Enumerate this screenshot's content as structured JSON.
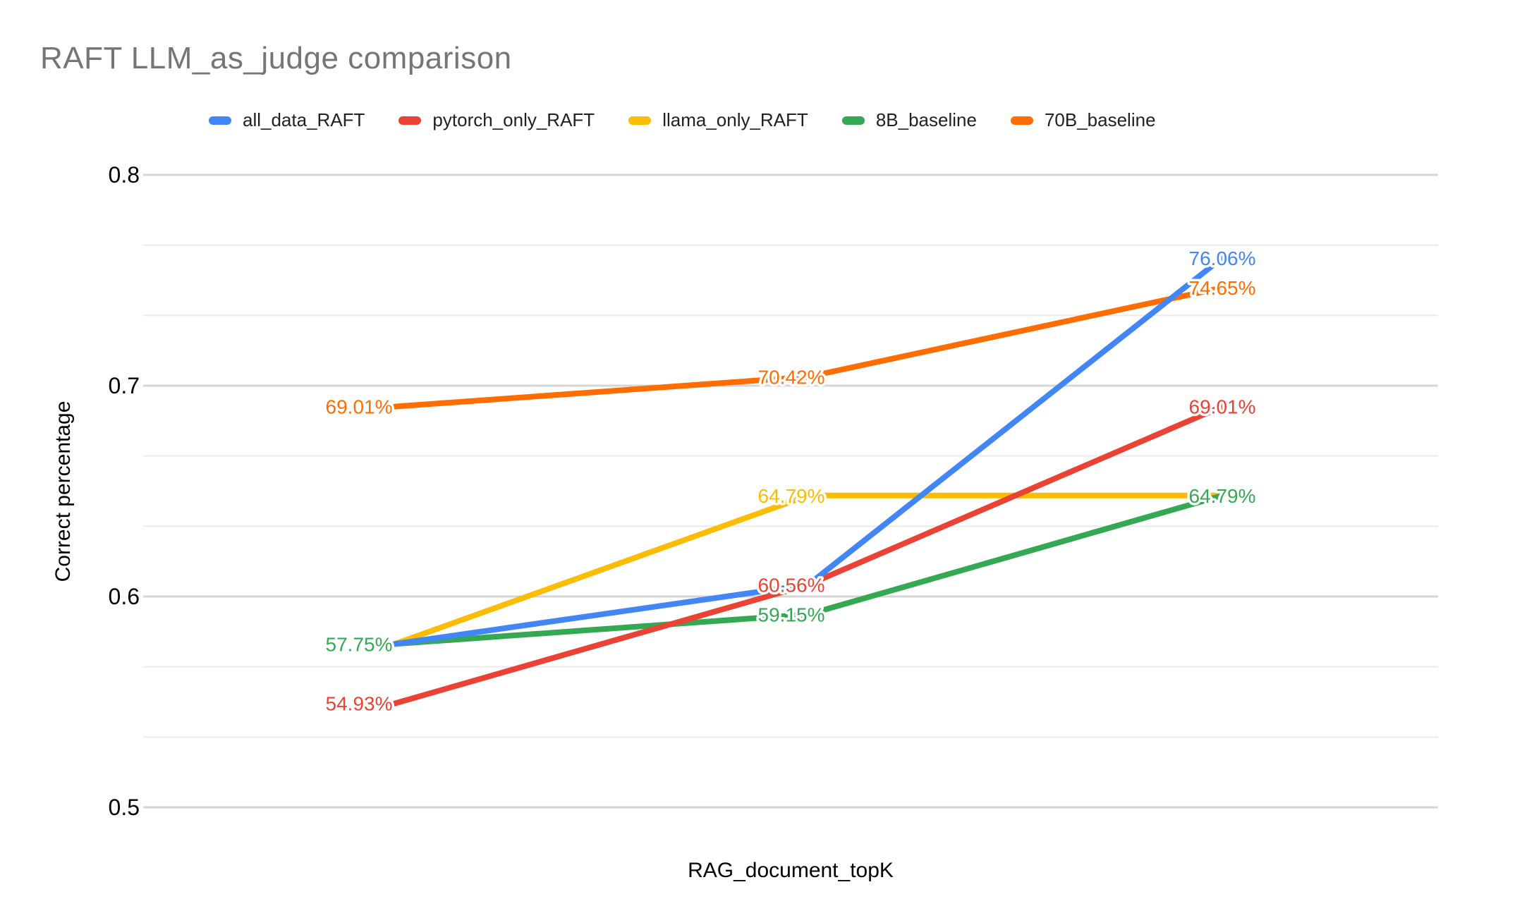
{
  "title": "RAFT LLM_as_judge comparison",
  "colors": {
    "title_text": "#757575",
    "axis_text": "#000000",
    "legend_text": "#202124",
    "grid_major": "#d6d6d6",
    "grid_minor": "#ebebeb",
    "background": "#ffffff"
  },
  "chart_data": {
    "type": "line",
    "title": "RAFT LLM_as_judge comparison",
    "xlabel": "RAG_document_topK",
    "ylabel": "Correct percentage",
    "x_axis": {
      "label": "RAG_document_topK",
      "categories": [
        "",
        "",
        ""
      ],
      "tick_labels_visible": false
    },
    "y_axis": {
      "label": "Correct percentage",
      "min": 0.5,
      "max": 0.8,
      "major_step": 0.1,
      "minor_divisions": 3,
      "ticks": [
        "0.5",
        "0.6",
        "0.7",
        "0.8"
      ]
    },
    "legend_position": "top",
    "grid": true,
    "series": [
      {
        "name": "all_data_RAFT",
        "color": "#4285F4",
        "values": [
          0.5775,
          0.6056,
          0.7606
        ],
        "labels": [
          null,
          null,
          "76.06%"
        ]
      },
      {
        "name": "pytorch_only_RAFT",
        "color": "#EA4335",
        "values": [
          0.5493,
          0.6056,
          0.6901
        ],
        "labels": [
          "54.93%",
          "60.56%",
          "69.01%"
        ]
      },
      {
        "name": "llama_only_RAFT",
        "color": "#FBBC04",
        "values": [
          0.5775,
          0.6479,
          0.6479
        ],
        "labels": [
          null,
          "64.79%",
          null
        ]
      },
      {
        "name": "8B_baseline",
        "color": "#34A853",
        "values": [
          0.5775,
          0.5915,
          0.6479
        ],
        "labels": [
          "57.75%",
          "59.15%",
          "64.79%"
        ]
      },
      {
        "name": "70B_baseline",
        "color": "#FF6D01",
        "values": [
          0.6901,
          0.7042,
          0.7465
        ],
        "labels": [
          "69.01%",
          "70.42%",
          "74.65%"
        ]
      }
    ]
  }
}
